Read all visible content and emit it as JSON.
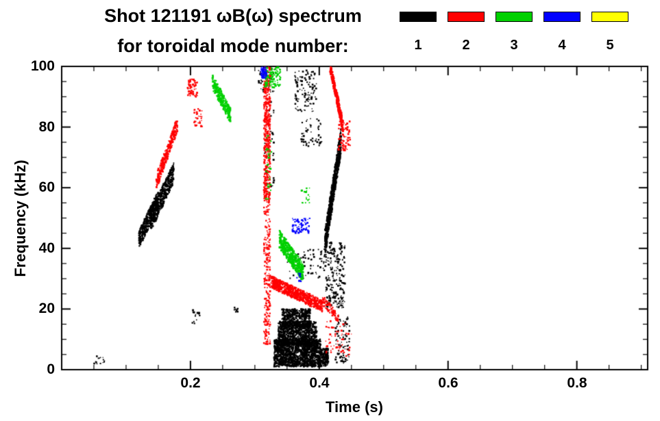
{
  "header": {
    "title_line1": "Shot 121191 ωB(ω) spectrum",
    "title_line2": "for toroidal mode number:"
  },
  "chart_data": {
    "type": "scatter",
    "title": "Shot 121191 ωB(ω) spectrum for toroidal mode number: 1 2 3 4 5",
    "xlabel": "Time (s)",
    "ylabel": "Frequency (kHz)",
    "xlim": [
      0,
      0.91
    ],
    "ylim": [
      0,
      100
    ],
    "xticks": [
      0.2,
      0.4,
      0.6,
      0.8
    ],
    "xtick_labels": [
      "0.2",
      "0.4",
      "0.6",
      "0.8"
    ],
    "yticks": [
      0,
      20,
      40,
      60,
      80,
      100
    ],
    "ytick_labels": [
      "0",
      "20",
      "40",
      "60",
      "80",
      "100"
    ],
    "x_minor_step": 0.05,
    "y_minor_step": 5,
    "grid": false,
    "legend_position": "top-right",
    "legend": [
      {
        "label": "1",
        "color": "#000000"
      },
      {
        "label": "2",
        "color": "#ff0000"
      },
      {
        "label": "3",
        "color": "#00d000"
      },
      {
        "label": "4",
        "color": "#0000ff"
      },
      {
        "label": "5",
        "color": "#ffff00"
      }
    ],
    "series": [
      {
        "name": "toroidal mode n=1",
        "color": "#000000",
        "clusters": [
          {
            "mode": "fill",
            "t": [
              0.05,
              0.068
            ],
            "f": [
              1.5,
              4.5
            ],
            "n": 14,
            "s": 2
          },
          {
            "mode": "rise",
            "t": [
              0.12,
              0.15
            ],
            "f": [
              43,
              56
            ],
            "n": 380,
            "j": 6,
            "s": 2
          },
          {
            "mode": "rise",
            "t": [
              0.138,
              0.174
            ],
            "f": [
              49,
              65
            ],
            "n": 520,
            "j": 7,
            "s": 2
          },
          {
            "mode": "fill",
            "t": [
              0.202,
              0.215
            ],
            "f": [
              15,
              21
            ],
            "n": 16,
            "s": 2
          },
          {
            "mode": "fill",
            "t": [
              0.267,
              0.274
            ],
            "f": [
              19,
              21
            ],
            "n": 8,
            "s": 2
          },
          {
            "mode": "fill",
            "t": [
              0.305,
              0.33
            ],
            "f": [
              90,
              100
            ],
            "n": 45,
            "s": 2
          },
          {
            "mode": "fill",
            "t": [
              0.315,
              0.33
            ],
            "f": [
              60,
              90
            ],
            "n": 35,
            "s": 2
          },
          {
            "mode": "fill",
            "t": [
              0.33,
              0.402
            ],
            "f": [
              1,
              10
            ],
            "n": 1600,
            "s": 2
          },
          {
            "mode": "fill",
            "t": [
              0.336,
              0.396
            ],
            "f": [
              8,
              16
            ],
            "n": 900,
            "s": 2
          },
          {
            "mode": "fill",
            "t": [
              0.342,
              0.386
            ],
            "f": [
              14,
              20
            ],
            "n": 450,
            "s": 2
          },
          {
            "mode": "fill",
            "t": [
              0.4,
              0.414
            ],
            "f": [
              1,
              7
            ],
            "n": 160,
            "s": 2
          },
          {
            "mode": "fill",
            "t": [
              0.35,
              0.41
            ],
            "f": [
              30,
              40
            ],
            "n": 70,
            "s": 2
          },
          {
            "mode": "fill",
            "t": [
              0.362,
              0.396
            ],
            "f": [
              85,
              99
            ],
            "n": 110,
            "s": 2
          },
          {
            "mode": "fill",
            "t": [
              0.372,
              0.404
            ],
            "f": [
              73,
              83
            ],
            "n": 55,
            "s": 2
          },
          {
            "mode": "rise",
            "t": [
              0.409,
              0.434
            ],
            "f": [
              42,
              76
            ],
            "n": 900,
            "j": 8,
            "s": 2
          },
          {
            "mode": "fill",
            "t": [
              0.41,
              0.44
            ],
            "f": [
              20,
              42
            ],
            "n": 230,
            "s": 2
          },
          {
            "mode": "fill",
            "t": [
              0.425,
              0.447
            ],
            "f": [
              2,
              18
            ],
            "n": 90,
            "s": 2
          }
        ]
      },
      {
        "name": "toroidal mode n=2",
        "color": "#ff0000",
        "clusters": [
          {
            "mode": "rise",
            "t": [
              0.147,
              0.18
            ],
            "f": [
              62,
              81
            ],
            "n": 300,
            "j": 5,
            "s": 2
          },
          {
            "mode": "fill",
            "t": [
              0.195,
              0.211
            ],
            "f": [
              90,
              96
            ],
            "n": 70,
            "s": 2
          },
          {
            "mode": "fill",
            "t": [
              0.205,
              0.218
            ],
            "f": [
              80,
              86
            ],
            "n": 35,
            "s": 2
          },
          {
            "mode": "fill",
            "t": [
              0.314,
              0.324
            ],
            "f": [
              8,
              100
            ],
            "n": 450,
            "s": 2
          },
          {
            "mode": "fill",
            "t": [
              0.314,
              0.324
            ],
            "f": [
              55,
              100
            ],
            "n": 250,
            "s": 2
          },
          {
            "mode": "fall",
            "t": [
              0.325,
              0.405
            ],
            "f": [
              21,
              29
            ],
            "n": 750,
            "j": 4,
            "s": 2
          },
          {
            "mode": "fall",
            "t": [
              0.405,
              0.43
            ],
            "f": [
              17,
              23
            ],
            "n": 90,
            "j": 3,
            "s": 2
          },
          {
            "mode": "fall",
            "t": [
              0.417,
              0.437
            ],
            "f": [
              80,
              100
            ],
            "n": 420,
            "j": 4,
            "s": 2
          },
          {
            "mode": "fill",
            "t": [
              0.43,
              0.448
            ],
            "f": [
              72,
              82
            ],
            "n": 70,
            "s": 2
          },
          {
            "mode": "fill",
            "t": [
              0.41,
              0.45
            ],
            "f": [
              4,
              16
            ],
            "n": 60,
            "s": 2
          }
        ]
      },
      {
        "name": "toroidal mode n=3",
        "color": "#00d000",
        "clusters": [
          {
            "mode": "fall",
            "t": [
              0.234,
              0.262
            ],
            "f": [
              84,
              95
            ],
            "n": 260,
            "j": 5,
            "s": 2
          },
          {
            "mode": "fill",
            "t": [
              0.315,
              0.34
            ],
            "f": [
              93,
              100
            ],
            "n": 120,
            "s": 2
          },
          {
            "mode": "fill",
            "t": [
              0.317,
              0.326
            ],
            "f": [
              55,
              80
            ],
            "n": 35,
            "s": 2
          },
          {
            "mode": "fall",
            "t": [
              0.338,
              0.375
            ],
            "f": [
              32,
              43
            ],
            "n": 520,
            "j": 6,
            "s": 2
          },
          {
            "mode": "fill",
            "t": [
              0.372,
              0.385
            ],
            "f": [
              55,
              60
            ],
            "n": 20,
            "s": 2
          }
        ]
      },
      {
        "name": "toroidal mode n=4",
        "color": "#0000ff",
        "clusters": [
          {
            "mode": "fill",
            "t": [
              0.309,
              0.318
            ],
            "f": [
              96,
              100
            ],
            "n": 55,
            "s": 2
          },
          {
            "mode": "fill",
            "t": [
              0.358,
              0.386
            ],
            "f": [
              45,
              50
            ],
            "n": 70,
            "s": 2
          },
          {
            "mode": "fill",
            "t": [
              0.365,
              0.372
            ],
            "f": [
              29,
              32
            ],
            "n": 10,
            "s": 2
          }
        ]
      },
      {
        "name": "toroidal mode n=5",
        "color": "#ffff00",
        "clusters": []
      }
    ]
  }
}
